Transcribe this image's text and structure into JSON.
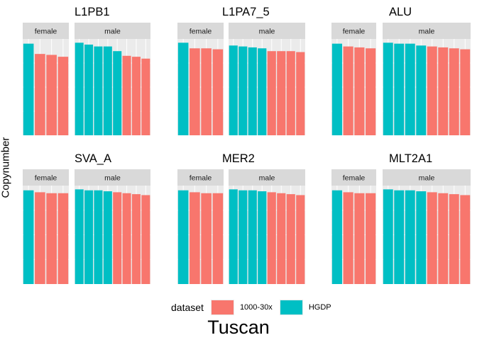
{
  "page": {
    "ylabel": "Copynumber",
    "bottom_title": "Tuscan",
    "legend": {
      "title": "dataset",
      "items": [
        {
          "label": "1000-30x",
          "color": "#F8766D"
        },
        {
          "label": "HGDP",
          "color": "#00BFC4"
        }
      ]
    }
  },
  "chart_data": {
    "type": "bar",
    "facet_labels": [
      "female",
      "male"
    ],
    "ylim": [
      0,
      1
    ],
    "grid": true,
    "legend_position": "bottom",
    "colors": {
      "1000-30x": "#F8766D",
      "HGDP": "#00BFC4"
    },
    "panels": [
      {
        "title": "L1PB1",
        "female": [
          {
            "dataset": "HGDP",
            "value": 0.98
          },
          {
            "dataset": "1000-30x",
            "value": 0.87
          },
          {
            "dataset": "1000-30x",
            "value": 0.86
          },
          {
            "dataset": "1000-30x",
            "value": 0.84
          }
        ],
        "male": [
          {
            "dataset": "HGDP",
            "value": 0.99
          },
          {
            "dataset": "HGDP",
            "value": 0.97
          },
          {
            "dataset": "HGDP",
            "value": 0.95
          },
          {
            "dataset": "HGDP",
            "value": 0.95
          },
          {
            "dataset": "HGDP",
            "value": 0.9
          },
          {
            "dataset": "1000-30x",
            "value": 0.85
          },
          {
            "dataset": "1000-30x",
            "value": 0.84
          },
          {
            "dataset": "1000-30x",
            "value": 0.82
          }
        ]
      },
      {
        "title": "L1PA7_5",
        "female": [
          {
            "dataset": "HGDP",
            "value": 0.99
          },
          {
            "dataset": "1000-30x",
            "value": 0.93
          },
          {
            "dataset": "1000-30x",
            "value": 0.93
          },
          {
            "dataset": "1000-30x",
            "value": 0.92
          }
        ],
        "male": [
          {
            "dataset": "HGDP",
            "value": 0.96
          },
          {
            "dataset": "HGDP",
            "value": 0.95
          },
          {
            "dataset": "HGDP",
            "value": 0.94
          },
          {
            "dataset": "HGDP",
            "value": 0.93
          },
          {
            "dataset": "1000-30x",
            "value": 0.9
          },
          {
            "dataset": "1000-30x",
            "value": 0.9
          },
          {
            "dataset": "1000-30x",
            "value": 0.9
          },
          {
            "dataset": "1000-30x",
            "value": 0.89
          }
        ]
      },
      {
        "title": "ALU",
        "female": [
          {
            "dataset": "HGDP",
            "value": 0.98
          },
          {
            "dataset": "1000-30x",
            "value": 0.95
          },
          {
            "dataset": "1000-30x",
            "value": 0.94
          },
          {
            "dataset": "1000-30x",
            "value": 0.93
          }
        ],
        "male": [
          {
            "dataset": "HGDP",
            "value": 0.99
          },
          {
            "dataset": "HGDP",
            "value": 0.98
          },
          {
            "dataset": "HGDP",
            "value": 0.98
          },
          {
            "dataset": "HGDP",
            "value": 0.96
          },
          {
            "dataset": "1000-30x",
            "value": 0.95
          },
          {
            "dataset": "1000-30x",
            "value": 0.94
          },
          {
            "dataset": "1000-30x",
            "value": 0.93
          },
          {
            "dataset": "1000-30x",
            "value": 0.92
          }
        ]
      },
      {
        "title": "SVA_A",
        "female": [
          {
            "dataset": "HGDP",
            "value": 0.98
          },
          {
            "dataset": "1000-30x",
            "value": 0.96
          },
          {
            "dataset": "1000-30x",
            "value": 0.95
          },
          {
            "dataset": "1000-30x",
            "value": 0.95
          }
        ],
        "male": [
          {
            "dataset": "HGDP",
            "value": 0.99
          },
          {
            "dataset": "HGDP",
            "value": 0.98
          },
          {
            "dataset": "HGDP",
            "value": 0.98
          },
          {
            "dataset": "HGDP",
            "value": 0.97
          },
          {
            "dataset": "1000-30x",
            "value": 0.96
          },
          {
            "dataset": "1000-30x",
            "value": 0.95
          },
          {
            "dataset": "1000-30x",
            "value": 0.94
          },
          {
            "dataset": "1000-30x",
            "value": 0.93
          }
        ]
      },
      {
        "title": "MER2",
        "female": [
          {
            "dataset": "HGDP",
            "value": 0.98
          },
          {
            "dataset": "1000-30x",
            "value": 0.96
          },
          {
            "dataset": "1000-30x",
            "value": 0.95
          },
          {
            "dataset": "1000-30x",
            "value": 0.95
          }
        ],
        "male": [
          {
            "dataset": "HGDP",
            "value": 0.99
          },
          {
            "dataset": "HGDP",
            "value": 0.98
          },
          {
            "dataset": "HGDP",
            "value": 0.98
          },
          {
            "dataset": "HGDP",
            "value": 0.97
          },
          {
            "dataset": "1000-30x",
            "value": 0.96
          },
          {
            "dataset": "1000-30x",
            "value": 0.95
          },
          {
            "dataset": "1000-30x",
            "value": 0.94
          },
          {
            "dataset": "1000-30x",
            "value": 0.93
          }
        ]
      },
      {
        "title": "MLT2A1",
        "female": [
          {
            "dataset": "HGDP",
            "value": 0.98
          },
          {
            "dataset": "1000-30x",
            "value": 0.96
          },
          {
            "dataset": "1000-30x",
            "value": 0.95
          },
          {
            "dataset": "1000-30x",
            "value": 0.95
          }
        ],
        "male": [
          {
            "dataset": "HGDP",
            "value": 0.99
          },
          {
            "dataset": "HGDP",
            "value": 0.98
          },
          {
            "dataset": "HGDP",
            "value": 0.98
          },
          {
            "dataset": "HGDP",
            "value": 0.97
          },
          {
            "dataset": "1000-30x",
            "value": 0.96
          },
          {
            "dataset": "1000-30x",
            "value": 0.95
          },
          {
            "dataset": "1000-30x",
            "value": 0.94
          },
          {
            "dataset": "1000-30x",
            "value": 0.93
          }
        ]
      }
    ]
  }
}
